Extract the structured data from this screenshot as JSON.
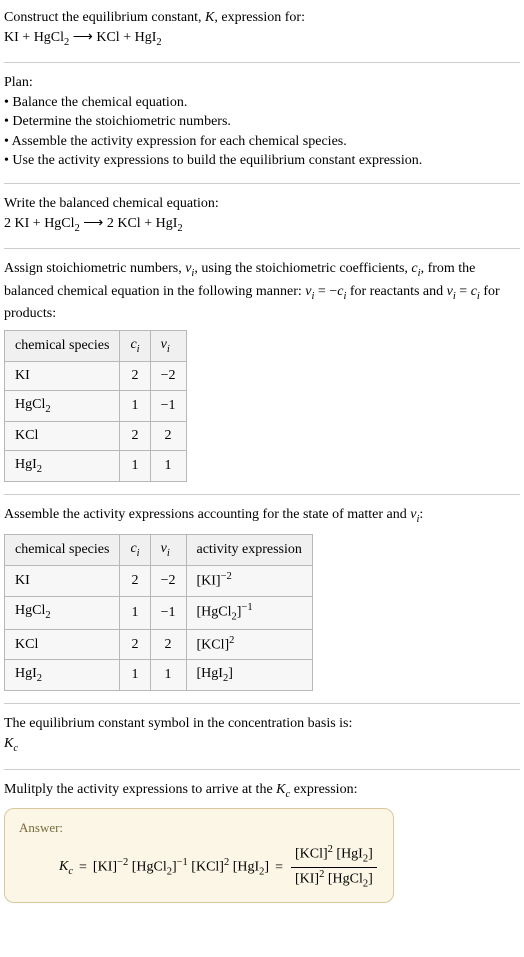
{
  "header": {
    "line1_prefix": "Construct the equilibrium constant, ",
    "line1_K": "K",
    "line1_suffix": ", expression for:"
  },
  "eq_unbalanced": {
    "r1": "KI",
    "plus1": " + ",
    "r2": "HgCl",
    "r2_sub": "2",
    "arrow": " ⟶ ",
    "p1": "KCl",
    "plus2": " + ",
    "p2": "HgI",
    "p2_sub": "2"
  },
  "plan": {
    "title": "Plan:",
    "items": [
      "Balance the chemical equation.",
      "Determine the stoichiometric numbers.",
      "Assemble the activity expression for each chemical species.",
      "Use the activity expressions to build the equilibrium constant expression."
    ]
  },
  "balanced_label": "Write the balanced chemical equation:",
  "eq_balanced": {
    "c1": "2 ",
    "r1": "KI",
    "plus1": " + ",
    "r2": "HgCl",
    "r2_sub": "2",
    "arrow": " ⟶ ",
    "c2": "2 ",
    "p1": "KCl",
    "plus2": " + ",
    "p2": "HgI",
    "p2_sub": "2"
  },
  "stoich_text": {
    "t1": "Assign stoichiometric numbers, ",
    "nu": "ν",
    "nu_sub": "i",
    "t2": ", using the stoichiometric coefficients, ",
    "c": "c",
    "c_sub": "i",
    "t3": ", from the balanced chemical equation in the following manner: ",
    "eq1_l": "ν",
    "eq1_lsub": "i",
    "eq1_mid": " = −",
    "eq1_r": "c",
    "eq1_rsub": "i",
    "t4": " for reactants and ",
    "eq2_l": "ν",
    "eq2_lsub": "i",
    "eq2_mid": " = ",
    "eq2_r": "c",
    "eq2_rsub": "i",
    "t5": " for products:"
  },
  "table1": {
    "h1": "chemical species",
    "h2_sym": "c",
    "h2_sub": "i",
    "h3_sym": "ν",
    "h3_sub": "i",
    "rows": [
      {
        "sp": "KI",
        "sub": "",
        "c": "2",
        "nu": "−2"
      },
      {
        "sp": "HgCl",
        "sub": "2",
        "c": "1",
        "nu": "−1"
      },
      {
        "sp": "KCl",
        "sub": "",
        "c": "2",
        "nu": "2"
      },
      {
        "sp": "HgI",
        "sub": "2",
        "c": "1",
        "nu": "1"
      }
    ]
  },
  "activity_label_1": "Assemble the activity expressions accounting for the state of matter and ",
  "activity_label_nu": "ν",
  "activity_label_nusub": "i",
  "activity_label_2": ":",
  "table2": {
    "h1": "chemical species",
    "h2_sym": "c",
    "h2_sub": "i",
    "h3_sym": "ν",
    "h3_sub": "i",
    "h4": "activity expression",
    "rows": [
      {
        "sp": "KI",
        "sub": "",
        "c": "2",
        "nu": "−2",
        "act_base": "[KI]",
        "act_sup": "−2"
      },
      {
        "sp": "HgCl",
        "sub": "2",
        "c": "1",
        "nu": "−1",
        "act_base": "[HgCl",
        "act_bsub": "2",
        "act_close": "]",
        "act_sup": "−1"
      },
      {
        "sp": "KCl",
        "sub": "",
        "c": "2",
        "nu": "2",
        "act_base": "[KCl]",
        "act_sup": "2"
      },
      {
        "sp": "HgI",
        "sub": "2",
        "c": "1",
        "nu": "1",
        "act_base": "[HgI",
        "act_bsub": "2",
        "act_close": "]",
        "act_sup": ""
      }
    ]
  },
  "eq_symbol_line1": "The equilibrium constant symbol in the concentration basis is:",
  "eq_symbol_K": "K",
  "eq_symbol_sub": "c",
  "multiply_1": "Mulitply the activity expressions to arrive at the ",
  "multiply_K": "K",
  "multiply_sub": "c",
  "multiply_2": " expression:",
  "answer": {
    "label": "Answer:",
    "Kc": "K",
    "Kc_sub": "c",
    "eq": " = ",
    "t1": "[KI]",
    "t1_sup": "−2",
    "sp1": " ",
    "t2a": "[HgCl",
    "t2_sub": "2",
    "t2b": "]",
    "t2_sup": "−1",
    "sp2": " ",
    "t3": "[KCl]",
    "t3_sup": "2",
    "sp3": " ",
    "t4a": "[HgI",
    "t4_sub": "2",
    "t4b": "]",
    "eq2": " = ",
    "num_1": "[KCl]",
    "num_1_sup": "2",
    "num_sp": " ",
    "num_2a": "[HgI",
    "num_2_sub": "2",
    "num_2b": "]",
    "den_1": "[KI]",
    "den_1_sup": "2",
    "den_sp": " ",
    "den_2a": "[HgCl",
    "den_2_sub": "2",
    "den_2b": "]"
  }
}
